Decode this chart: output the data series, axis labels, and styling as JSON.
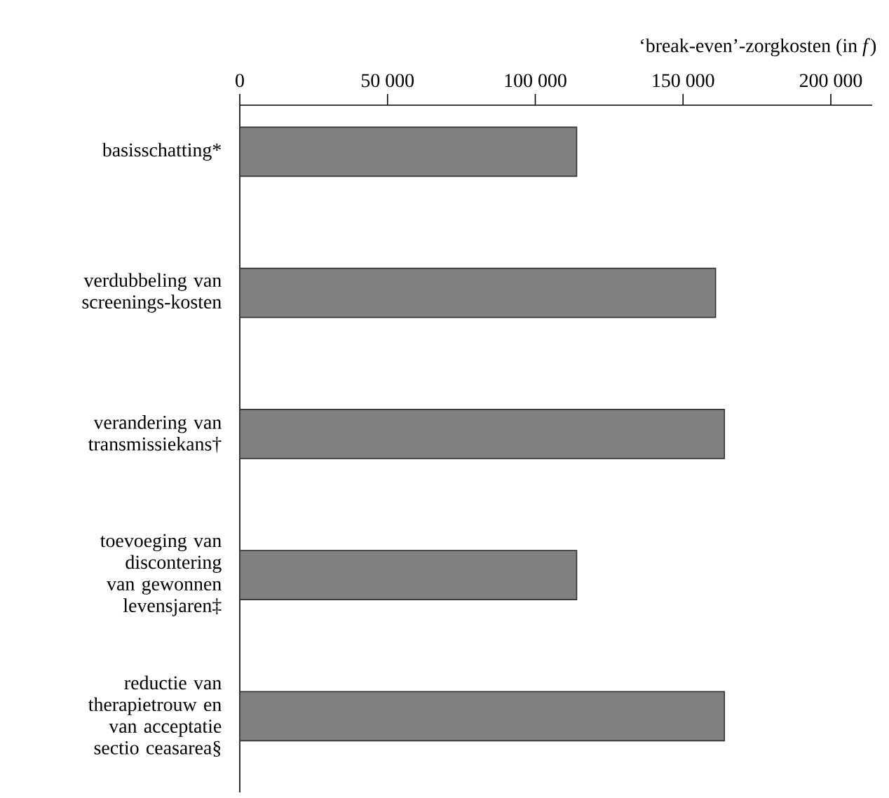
{
  "chart_data": {
    "type": "bar",
    "orientation": "horizontal",
    "xlabel": "‘break-even’-zorgkosten (in *f*)",
    "categories": [
      "basisschatting*",
      "verdubbeling van screenings-kosten",
      "verandering van transmissiekans†",
      "toevoeging van discontering van gewonnen levensjaren‡",
      "reductie van therapietrouw en van acceptatie sectio ceasarea§"
    ],
    "values": [
      114000,
      161000,
      164000,
      114000,
      164000
    ],
    "color": "#808083",
    "xlim": [
      0,
      214000
    ],
    "xticks": [
      0,
      {
        "value": 50000,
        "label": "50 000"
      },
      {
        "value": 100000,
        "label": "100 000"
      },
      {
        "value": 150000,
        "label": "150 000"
      },
      {
        "value": 200000,
        "label": "200 000"
      }
    ],
    "grid": false
  }
}
